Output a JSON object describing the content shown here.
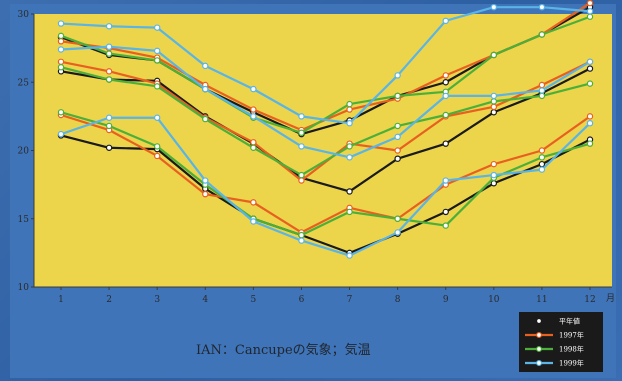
{
  "chart_data": {
    "type": "line",
    "title": "",
    "caption": "IAN：Cancupeの気象；気温",
    "xlabel": "",
    "ylabel": "",
    "x_unit": "月",
    "x": [
      1,
      2,
      3,
      4,
      5,
      6,
      7,
      8,
      9,
      10,
      11,
      12
    ],
    "ylim": [
      10,
      30
    ],
    "yticks": [
      10,
      15,
      20,
      25,
      30
    ],
    "grid": false,
    "legend_position": "bottom-right",
    "series": [
      {
        "name": "平年値",
        "color": "#1a1a1a",
        "band": "max",
        "values": [
          28.3,
          27.0,
          26.6,
          24.5,
          22.8,
          21.2,
          22.2,
          24.0,
          25.0,
          27.0,
          28.5,
          30.5
        ]
      },
      {
        "name": "平年値",
        "color": "#1a1a1a",
        "band": "mean",
        "values": [
          25.8,
          25.2,
          25.1,
          22.5,
          20.5,
          18.0,
          17.0,
          19.4,
          20.5,
          22.8,
          24.2,
          26.0
        ]
      },
      {
        "name": "平年値",
        "color": "#1a1a1a",
        "band": "min",
        "values": [
          21.1,
          20.2,
          20.1,
          17.2,
          15.0,
          13.8,
          12.5,
          13.9,
          15.5,
          17.6,
          19.0,
          20.8
        ]
      },
      {
        "name": "1997年",
        "color": "#e86020",
        "band": "max",
        "values": [
          28.0,
          27.5,
          26.8,
          24.8,
          23.0,
          21.5,
          23.0,
          23.8,
          25.5,
          27.0,
          28.5,
          30.8
        ]
      },
      {
        "name": "1997年",
        "color": "#e86020",
        "band": "mean",
        "values": [
          26.5,
          25.8,
          24.9,
          22.4,
          20.6,
          17.8,
          20.5,
          20.0,
          22.5,
          23.2,
          24.8,
          26.5
        ]
      },
      {
        "name": "1997年",
        "color": "#e86020",
        "band": "min",
        "values": [
          22.6,
          21.5,
          19.6,
          16.8,
          16.2,
          14.0,
          15.8,
          15.0,
          17.5,
          19.0,
          20.0,
          22.5
        ]
      },
      {
        "name": "1998年",
        "color": "#4caf3a",
        "band": "max",
        "values": [
          28.4,
          27.1,
          26.6,
          24.5,
          22.4,
          21.3,
          23.4,
          24.0,
          24.3,
          27.0,
          28.5,
          29.8
        ]
      },
      {
        "name": "1998年",
        "color": "#4caf3a",
        "band": "mean",
        "values": [
          26.1,
          25.2,
          24.7,
          22.3,
          20.2,
          18.2,
          20.3,
          21.8,
          22.6,
          23.6,
          24.0,
          24.9
        ]
      },
      {
        "name": "1998年",
        "color": "#4caf3a",
        "band": "min",
        "values": [
          22.8,
          21.8,
          20.3,
          17.5,
          15.0,
          13.8,
          15.5,
          15.0,
          14.5,
          18.0,
          19.5,
          20.5
        ]
      },
      {
        "name": "1999年",
        "color": "#5ab4e6",
        "band": "max",
        "values": [
          29.3,
          29.1,
          29.0,
          26.2,
          24.5,
          22.5,
          22.0,
          25.5,
          29.5,
          30.5,
          30.5,
          30.2
        ]
      },
      {
        "name": "1999年",
        "color": "#5ab4e6",
        "band": "mean",
        "values": [
          27.4,
          27.6,
          27.3,
          24.5,
          22.5,
          20.3,
          19.5,
          21.0,
          24.0,
          24.0,
          24.4,
          26.5
        ]
      },
      {
        "name": "1999年",
        "color": "#5ab4e6",
        "band": "min",
        "values": [
          21.2,
          22.4,
          22.4,
          17.8,
          14.8,
          13.4,
          12.3,
          14.0,
          17.8,
          18.2,
          18.6,
          22.0
        ]
      }
    ],
    "legend": [
      {
        "label": "平年値",
        "color": "#1a1a1a"
      },
      {
        "label": "1997年",
        "color": "#e86020"
      },
      {
        "label": "1998年",
        "color": "#4caf3a"
      },
      {
        "label": "1999年",
        "color": "#5ab4e6"
      }
    ],
    "colors": {
      "plot_background": "#ecd54a",
      "axis": "#3a3a3a",
      "slide_background": "#3f74b9",
      "legend_background": "#1a1a1a"
    }
  }
}
